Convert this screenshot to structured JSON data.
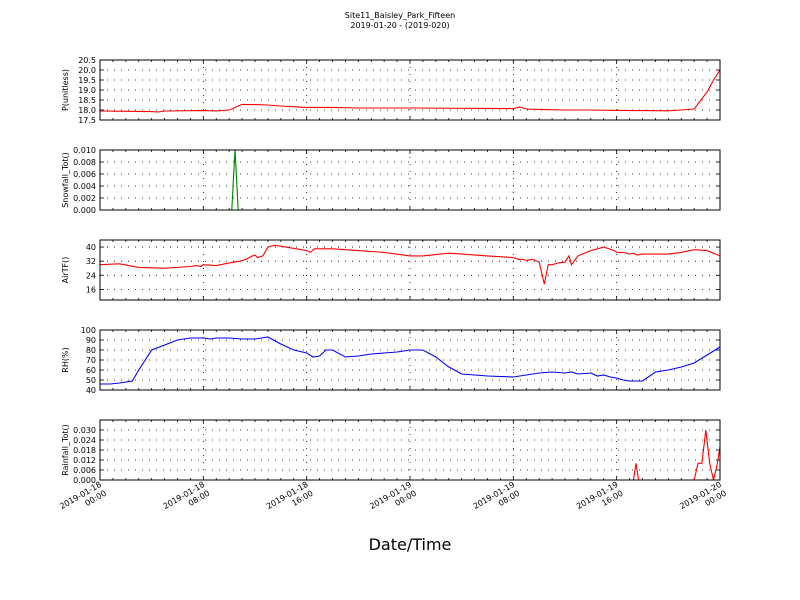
{
  "figure": {
    "title": "Site11_Baisley_Park_Fifteen",
    "subtitle": "2019-01-20 - (2019-020)",
    "xlabel": "Date/Time",
    "xtick_labels": [
      [
        "2019-01-18",
        "00:00"
      ],
      [
        "2019-01-18",
        "08:00"
      ],
      [
        "2019-01-18",
        "16:00"
      ],
      [
        "2019-01-19",
        "00:00"
      ],
      [
        "2019-01-19",
        "08:00"
      ],
      [
        "2019-01-19",
        "16:00"
      ],
      [
        "2019-01-20",
        "00:00"
      ]
    ]
  },
  "chart_data": [
    {
      "type": "line",
      "ylabel": "P(unitless)",
      "color": "#ff0000",
      "ylim": [
        17.5,
        20.5
      ],
      "yticks": [
        "17.5",
        "18.0",
        "18.5",
        "19.0",
        "19.5",
        "20.0",
        "20.5"
      ],
      "x_hours": [
        0,
        4,
        4.5,
        5,
        8,
        9,
        10,
        11,
        12,
        13,
        14,
        16,
        18,
        20,
        21,
        24,
        32,
        32.5,
        33,
        34,
        36,
        38,
        40,
        42,
        44,
        45,
        46,
        47,
        47.5,
        48
      ],
      "series": [
        {
          "values": [
            17.95,
            17.92,
            17.9,
            17.95,
            17.97,
            17.95,
            18.0,
            18.28,
            18.27,
            18.25,
            18.2,
            18.13,
            18.13,
            18.1,
            18.1,
            18.1,
            18.07,
            18.15,
            18.05,
            18.03,
            18.0,
            18.0,
            17.98,
            17.97,
            17.96,
            18.0,
            18.05,
            18.9,
            19.5,
            20.0
          ]
        }
      ]
    },
    {
      "type": "line",
      "ylabel": "Snowfall_Tot()",
      "color": "#008000",
      "ylim": [
        0,
        0.01
      ],
      "yticks": [
        "0.000",
        "0.002",
        "0.004",
        "0.006",
        "0.008",
        "0.010"
      ],
      "x_hours": [
        0,
        10.2,
        10.45,
        10.7,
        48
      ],
      "series": [
        {
          "values": [
            0,
            0,
            0.01,
            0,
            0
          ]
        }
      ]
    },
    {
      "type": "line",
      "ylabel": "AirTF()",
      "color": "#ff0000",
      "ylim": [
        10,
        44
      ],
      "yticks": [
        "16",
        "24",
        "32",
        "40"
      ],
      "x_hours": [
        0,
        1.5,
        3,
        5,
        7,
        7.5,
        7.8,
        8,
        9,
        10,
        10.8,
        11.3,
        11.8,
        12,
        12.2,
        12.6,
        13,
        13.5,
        14,
        16,
        16.3,
        16.6,
        18,
        20,
        22,
        24,
        25,
        27,
        28,
        30,
        32,
        32.4,
        32.7,
        33,
        33.5,
        34,
        34.4,
        34.7,
        35,
        35.5,
        36,
        36.3,
        36.5,
        37,
        38,
        39,
        39.8,
        40,
        40.5,
        41,
        41.3,
        41.6,
        42,
        44,
        45,
        46,
        47,
        48
      ],
      "series": [
        {
          "values": [
            30,
            30.5,
            28.5,
            28,
            29,
            29.5,
            29,
            30,
            29.5,
            31,
            32,
            33,
            35,
            35.5,
            34,
            35,
            40,
            41,
            40.5,
            38,
            37,
            39,
            39,
            38,
            37,
            35,
            35,
            36.5,
            36,
            35,
            34,
            33,
            33,
            32.5,
            33,
            31.5,
            19,
            30,
            30,
            31,
            31.5,
            35,
            30,
            35,
            38,
            40,
            38,
            37,
            37,
            36,
            36.5,
            35.5,
            36,
            36,
            37,
            38.5,
            38,
            35
          ]
        }
      ]
    },
    {
      "type": "line",
      "ylabel": "RH(%)",
      "color": "#0000ff",
      "ylim": [
        40,
        100
      ],
      "yticks": [
        "40",
        "50",
        "60",
        "70",
        "80",
        "90",
        "100"
      ],
      "x_hours": [
        0,
        0.8,
        1.5,
        2,
        2.5,
        3,
        4,
        5,
        6,
        7,
        8,
        8.5,
        9,
        10,
        11,
        12,
        12.5,
        13,
        14,
        15,
        16,
        16.5,
        17,
        17.5,
        18,
        19,
        20,
        21,
        22,
        23,
        24,
        25,
        26,
        27,
        28,
        30,
        32,
        33,
        34,
        35,
        36,
        36.5,
        37,
        38,
        38.5,
        39,
        39.5,
        40,
        40.5,
        41,
        42,
        43,
        44,
        45,
        46,
        47,
        48
      ],
      "series": [
        {
          "values": [
            46,
            46,
            47,
            48,
            49,
            60,
            80,
            85,
            90,
            92,
            92,
            91,
            92,
            92,
            91,
            91,
            92,
            93,
            86,
            80,
            77,
            73,
            74,
            80,
            80,
            73,
            74,
            76,
            77,
            78,
            80,
            80,
            73,
            63,
            56,
            54,
            53,
            55,
            57,
            58,
            57,
            58,
            56,
            57,
            54,
            55,
            53,
            52,
            50,
            49,
            49,
            58,
            60,
            63,
            67,
            75,
            83
          ]
        }
      ]
    },
    {
      "type": "line",
      "ylabel": "Rainfall_Tot()",
      "color": "#ff0000",
      "ylim": [
        0,
        0.036
      ],
      "yticks": [
        "0.000",
        "0.006",
        "0.012",
        "0.018",
        "0.024",
        "0.030"
      ],
      "x_hours": [
        0,
        41.3,
        41.5,
        41.7,
        46,
        46.3,
        46.6,
        46.9,
        47.2,
        47.5,
        47.8,
        48
      ],
      "series": [
        {
          "values": [
            0,
            0,
            0.01,
            0,
            0,
            0.01,
            0.01,
            0.03,
            0.01,
            0,
            0.01,
            0.02
          ]
        }
      ]
    }
  ]
}
